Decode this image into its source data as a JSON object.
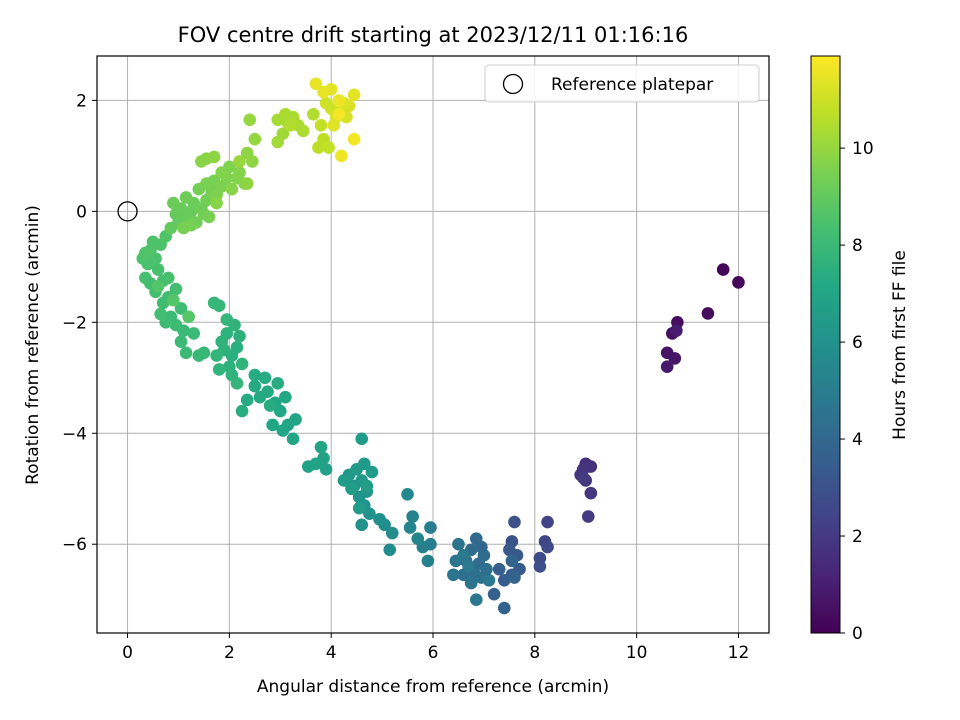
{
  "chart_data": {
    "type": "scatter",
    "title": "FOV centre drift starting at 2023/12/11 01:16:16",
    "xlabel": "Angular distance from reference (arcmin)",
    "ylabel": "Rotation from reference (arcmin)",
    "xlim": [
      -0.6,
      12.6
    ],
    "ylim": [
      -7.6,
      2.8
    ],
    "xticks": [
      0,
      2,
      4,
      6,
      8,
      10,
      12
    ],
    "yticks": [
      -6,
      -4,
      -2,
      0,
      2
    ],
    "grid": true,
    "legend": {
      "position": "top-right",
      "entries": [
        {
          "label": "Reference platepar",
          "marker": "open-circle"
        }
      ]
    },
    "reference_point": {
      "x": 0,
      "y": 0
    },
    "colorbar": {
      "label": "Hours from first FF file",
      "colormap": "viridis",
      "range": [
        0,
        11.9
      ],
      "ticks": [
        0,
        2,
        4,
        6,
        8,
        10
      ]
    },
    "points": [
      {
        "x": 11.7,
        "y": -1.05,
        "t": 0.1
      },
      {
        "x": 12.0,
        "y": -1.28,
        "t": 0.2
      },
      {
        "x": 11.4,
        "y": -1.84,
        "t": 0.3
      },
      {
        "x": 10.8,
        "y": -2.0,
        "t": 0.4
      },
      {
        "x": 10.7,
        "y": -2.2,
        "t": 0.5
      },
      {
        "x": 10.6,
        "y": -2.55,
        "t": 0.6
      },
      {
        "x": 10.75,
        "y": -2.65,
        "t": 0.7
      },
      {
        "x": 10.6,
        "y": -2.8,
        "t": 0.8
      },
      {
        "x": 10.78,
        "y": -2.15,
        "t": 0.9
      },
      {
        "x": 9.0,
        "y": -4.55,
        "t": 1.6
      },
      {
        "x": 9.1,
        "y": -4.6,
        "t": 1.7
      },
      {
        "x": 8.95,
        "y": -4.65,
        "t": 1.8
      },
      {
        "x": 8.9,
        "y": -4.75,
        "t": 1.8
      },
      {
        "x": 9.0,
        "y": -4.85,
        "t": 1.9
      },
      {
        "x": 9.1,
        "y": -5.08,
        "t": 1.9
      },
      {
        "x": 9.05,
        "y": -5.5,
        "t": 2.0
      },
      {
        "x": 8.95,
        "y": -4.8,
        "t": 2.0
      },
      {
        "x": 8.25,
        "y": -5.6,
        "t": 2.4
      },
      {
        "x": 8.2,
        "y": -5.95,
        "t": 2.5
      },
      {
        "x": 8.25,
        "y": -6.05,
        "t": 2.6
      },
      {
        "x": 8.1,
        "y": -6.25,
        "t": 2.7
      },
      {
        "x": 8.1,
        "y": -6.4,
        "t": 2.8
      },
      {
        "x": 7.6,
        "y": -5.6,
        "t": 3.0
      },
      {
        "x": 7.55,
        "y": -5.95,
        "t": 3.1
      },
      {
        "x": 7.5,
        "y": -6.1,
        "t": 3.2
      },
      {
        "x": 7.65,
        "y": -6.2,
        "t": 3.3
      },
      {
        "x": 7.7,
        "y": -6.45,
        "t": 3.4
      },
      {
        "x": 7.55,
        "y": -6.55,
        "t": 3.5
      },
      {
        "x": 7.4,
        "y": -6.65,
        "t": 3.5
      },
      {
        "x": 7.3,
        "y": -6.45,
        "t": 3.6
      },
      {
        "x": 7.2,
        "y": -6.9,
        "t": 3.7
      },
      {
        "x": 7.4,
        "y": -7.15,
        "t": 3.7
      },
      {
        "x": 7.55,
        "y": -6.3,
        "t": 3.8
      },
      {
        "x": 7.6,
        "y": -6.6,
        "t": 3.8
      },
      {
        "x": 6.85,
        "y": -5.9,
        "t": 4.0
      },
      {
        "x": 6.95,
        "y": -6.05,
        "t": 4.0
      },
      {
        "x": 6.75,
        "y": -6.1,
        "t": 4.1
      },
      {
        "x": 7.0,
        "y": -6.2,
        "t": 4.1
      },
      {
        "x": 6.65,
        "y": -6.3,
        "t": 4.2
      },
      {
        "x": 6.9,
        "y": -6.35,
        "t": 4.2
      },
      {
        "x": 7.05,
        "y": -6.45,
        "t": 4.3
      },
      {
        "x": 6.8,
        "y": -6.5,
        "t": 4.3
      },
      {
        "x": 6.6,
        "y": -6.55,
        "t": 4.4
      },
      {
        "x": 6.95,
        "y": -6.6,
        "t": 4.4
      },
      {
        "x": 6.75,
        "y": -6.7,
        "t": 4.5
      },
      {
        "x": 6.5,
        "y": -6.0,
        "t": 4.5
      },
      {
        "x": 6.45,
        "y": -6.3,
        "t": 4.6
      },
      {
        "x": 6.4,
        "y": -6.55,
        "t": 4.6
      },
      {
        "x": 6.85,
        "y": -7.0,
        "t": 4.7
      },
      {
        "x": 7.1,
        "y": -6.65,
        "t": 4.7
      },
      {
        "x": 6.6,
        "y": -6.2,
        "t": 4.8
      },
      {
        "x": 6.7,
        "y": -6.4,
        "t": 4.8
      },
      {
        "x": 5.95,
        "y": -5.7,
        "t": 5.0
      },
      {
        "x": 5.95,
        "y": -6.0,
        "t": 5.0
      },
      {
        "x": 5.8,
        "y": -6.05,
        "t": 5.1
      },
      {
        "x": 5.9,
        "y": -6.3,
        "t": 5.2
      },
      {
        "x": 5.6,
        "y": -5.5,
        "t": 5.3
      },
      {
        "x": 5.55,
        "y": -5.7,
        "t": 5.4
      },
      {
        "x": 5.7,
        "y": -5.9,
        "t": 5.4
      },
      {
        "x": 5.5,
        "y": -5.1,
        "t": 5.5
      },
      {
        "x": 5.2,
        "y": -5.8,
        "t": 5.7
      },
      {
        "x": 5.15,
        "y": -6.1,
        "t": 5.7
      },
      {
        "x": 5.05,
        "y": -5.65,
        "t": 5.8
      },
      {
        "x": 4.95,
        "y": -5.55,
        "t": 5.9
      },
      {
        "x": 4.75,
        "y": -5.45,
        "t": 6.0
      },
      {
        "x": 4.6,
        "y": -5.65,
        "t": 6.0
      },
      {
        "x": 4.65,
        "y": -5.3,
        "t": 6.1
      },
      {
        "x": 4.55,
        "y": -5.15,
        "t": 6.1
      },
      {
        "x": 4.7,
        "y": -5.05,
        "t": 6.2
      },
      {
        "x": 4.45,
        "y": -4.95,
        "t": 6.2
      },
      {
        "x": 4.6,
        "y": -4.85,
        "t": 6.3
      },
      {
        "x": 4.35,
        "y": -4.75,
        "t": 6.3
      },
      {
        "x": 4.5,
        "y": -4.65,
        "t": 6.4
      },
      {
        "x": 4.65,
        "y": -4.55,
        "t": 6.4
      },
      {
        "x": 4.8,
        "y": -4.7,
        "t": 6.4
      },
      {
        "x": 4.25,
        "y": -4.85,
        "t": 6.5
      },
      {
        "x": 4.55,
        "y": -5.35,
        "t": 6.5
      },
      {
        "x": 4.6,
        "y": -4.1,
        "t": 6.5
      },
      {
        "x": 4.7,
        "y": -4.95,
        "t": 6.6
      },
      {
        "x": 4.4,
        "y": -5.0,
        "t": 6.6
      },
      {
        "x": 3.85,
        "y": -4.45,
        "t": 6.8
      },
      {
        "x": 3.9,
        "y": -4.65,
        "t": 6.8
      },
      {
        "x": 3.7,
        "y": -4.55,
        "t": 6.9
      },
      {
        "x": 3.55,
        "y": -4.6,
        "t": 6.9
      },
      {
        "x": 3.8,
        "y": -4.25,
        "t": 6.95
      },
      {
        "x": 3.3,
        "y": -3.75,
        "t": 7.0
      },
      {
        "x": 3.15,
        "y": -3.85,
        "t": 7.0
      },
      {
        "x": 3.05,
        "y": -3.95,
        "t": 7.05
      },
      {
        "x": 3.25,
        "y": -4.1,
        "t": 7.05
      },
      {
        "x": 3.0,
        "y": -3.6,
        "t": 7.1
      },
      {
        "x": 2.85,
        "y": -3.85,
        "t": 7.1
      },
      {
        "x": 2.9,
        "y": -3.45,
        "t": 7.15
      },
      {
        "x": 3.1,
        "y": -3.35,
        "t": 7.15
      },
      {
        "x": 2.75,
        "y": -3.25,
        "t": 7.2
      },
      {
        "x": 2.6,
        "y": -3.35,
        "t": 7.2
      },
      {
        "x": 2.5,
        "y": -3.15,
        "t": 7.25
      },
      {
        "x": 2.35,
        "y": -3.4,
        "t": 7.25
      },
      {
        "x": 2.7,
        "y": -3.0,
        "t": 7.3
      },
      {
        "x": 2.5,
        "y": -2.95,
        "t": 7.3
      },
      {
        "x": 2.25,
        "y": -3.6,
        "t": 7.35
      },
      {
        "x": 2.8,
        "y": -3.5,
        "t": 7.35
      },
      {
        "x": 2.95,
        "y": -3.1,
        "t": 7.4
      },
      {
        "x": 2.15,
        "y": -2.45,
        "t": 7.5
      },
      {
        "x": 2.05,
        "y": -2.6,
        "t": 7.5
      },
      {
        "x": 2.0,
        "y": -2.8,
        "t": 7.55
      },
      {
        "x": 2.2,
        "y": -2.25,
        "t": 7.55
      },
      {
        "x": 1.9,
        "y": -2.5,
        "t": 7.6
      },
      {
        "x": 1.95,
        "y": -2.2,
        "t": 7.6
      },
      {
        "x": 2.1,
        "y": -2.05,
        "t": 7.65
      },
      {
        "x": 1.85,
        "y": -2.35,
        "t": 7.65
      },
      {
        "x": 2.05,
        "y": -2.95,
        "t": 7.7
      },
      {
        "x": 2.25,
        "y": -2.75,
        "t": 7.7
      },
      {
        "x": 1.75,
        "y": -2.6,
        "t": 7.75
      },
      {
        "x": 1.8,
        "y": -2.85,
        "t": 7.75
      },
      {
        "x": 2.15,
        "y": -3.1,
        "t": 7.8
      },
      {
        "x": 1.95,
        "y": -1.95,
        "t": 7.8
      },
      {
        "x": 1.7,
        "y": -1.65,
        "t": 7.85
      },
      {
        "x": 1.8,
        "y": -1.7,
        "t": 7.85
      },
      {
        "x": 1.5,
        "y": -2.55,
        "t": 7.9
      },
      {
        "x": 1.4,
        "y": -2.6,
        "t": 7.9
      },
      {
        "x": 1.3,
        "y": -2.2,
        "t": 8.0
      },
      {
        "x": 1.1,
        "y": -2.15,
        "t": 8.0
      },
      {
        "x": 1.15,
        "y": -2.55,
        "t": 8.05
      },
      {
        "x": 1.05,
        "y": -2.35,
        "t": 8.05
      },
      {
        "x": 0.95,
        "y": -2.05,
        "t": 8.1
      },
      {
        "x": 0.85,
        "y": -1.9,
        "t": 8.1
      },
      {
        "x": 1.05,
        "y": -1.75,
        "t": 8.15
      },
      {
        "x": 0.75,
        "y": -2.0,
        "t": 8.15
      },
      {
        "x": 0.7,
        "y": -1.65,
        "t": 8.2
      },
      {
        "x": 0.8,
        "y": -1.55,
        "t": 8.2
      },
      {
        "x": 0.65,
        "y": -1.85,
        "t": 8.25
      },
      {
        "x": 0.95,
        "y": -1.4,
        "t": 8.25
      },
      {
        "x": 0.55,
        "y": -1.45,
        "t": 8.3
      },
      {
        "x": 0.45,
        "y": -1.3,
        "t": 8.3
      },
      {
        "x": 0.7,
        "y": -1.25,
        "t": 8.35
      },
      {
        "x": 0.35,
        "y": -1.2,
        "t": 8.35
      },
      {
        "x": 0.6,
        "y": -1.05,
        "t": 8.4
      },
      {
        "x": 0.8,
        "y": -1.2,
        "t": 8.4
      },
      {
        "x": 0.4,
        "y": -0.95,
        "t": 8.45
      },
      {
        "x": 0.55,
        "y": -0.85,
        "t": 8.45
      },
      {
        "x": 0.3,
        "y": -0.85,
        "t": 8.5
      },
      {
        "x": 0.45,
        "y": -0.7,
        "t": 8.5
      },
      {
        "x": 0.65,
        "y": -0.6,
        "t": 8.55
      },
      {
        "x": 0.5,
        "y": -0.55,
        "t": 8.55
      },
      {
        "x": 0.75,
        "y": -0.45,
        "t": 8.6
      },
      {
        "x": 0.35,
        "y": -0.75,
        "t": 8.6
      },
      {
        "x": 0.9,
        "y": -1.6,
        "t": 8.65
      },
      {
        "x": 0.6,
        "y": -1.35,
        "t": 8.65
      },
      {
        "x": 1.2,
        "y": -1.9,
        "t": 8.7
      },
      {
        "x": 0.85,
        "y": -0.3,
        "t": 9.0
      },
      {
        "x": 1.0,
        "y": -0.2,
        "t": 9.0
      },
      {
        "x": 0.95,
        "y": -0.05,
        "t": 9.1
      },
      {
        "x": 1.15,
        "y": -0.1,
        "t": 9.1
      },
      {
        "x": 1.05,
        "y": 0.05,
        "t": 9.15
      },
      {
        "x": 1.25,
        "y": 0.0,
        "t": 9.15
      },
      {
        "x": 0.9,
        "y": 0.15,
        "t": 9.2
      },
      {
        "x": 1.3,
        "y": 0.15,
        "t": 9.2
      },
      {
        "x": 1.15,
        "y": 0.25,
        "t": 9.25
      },
      {
        "x": 1.45,
        "y": 0.05,
        "t": 9.25
      },
      {
        "x": 1.35,
        "y": -0.2,
        "t": 9.3
      },
      {
        "x": 1.5,
        "y": -0.05,
        "t": 9.3
      },
      {
        "x": 1.55,
        "y": 0.2,
        "t": 9.35
      },
      {
        "x": 1.4,
        "y": 0.4,
        "t": 9.35
      },
      {
        "x": 1.65,
        "y": 0.35,
        "t": 9.4
      },
      {
        "x": 1.25,
        "y": -0.25,
        "t": 9.4
      },
      {
        "x": 1.6,
        "y": -0.1,
        "t": 9.45
      },
      {
        "x": 1.1,
        "y": -0.3,
        "t": 9.45
      },
      {
        "x": 1.7,
        "y": 0.55,
        "t": 9.5
      },
      {
        "x": 1.55,
        "y": 0.5,
        "t": 9.5
      },
      {
        "x": 1.85,
        "y": 0.45,
        "t": 9.55
      },
      {
        "x": 1.75,
        "y": 0.3,
        "t": 9.55
      },
      {
        "x": 1.95,
        "y": 0.6,
        "t": 9.6
      },
      {
        "x": 2.0,
        "y": 0.8,
        "t": 9.6
      },
      {
        "x": 1.85,
        "y": 0.7,
        "t": 9.65
      },
      {
        "x": 2.15,
        "y": 0.6,
        "t": 9.65
      },
      {
        "x": 2.3,
        "y": 0.5,
        "t": 9.7
      },
      {
        "x": 2.2,
        "y": 0.7,
        "t": 9.7
      },
      {
        "x": 2.05,
        "y": 0.4,
        "t": 9.75
      },
      {
        "x": 1.75,
        "y": 0.15,
        "t": 9.75
      },
      {
        "x": 1.45,
        "y": 0.9,
        "t": 9.8
      },
      {
        "x": 1.55,
        "y": 0.95,
        "t": 9.8
      },
      {
        "x": 1.7,
        "y": 0.98,
        "t": 9.85
      },
      {
        "x": 2.35,
        "y": 1.05,
        "t": 9.85
      },
      {
        "x": 2.45,
        "y": 0.9,
        "t": 9.9
      },
      {
        "x": 2.35,
        "y": 0.5,
        "t": 9.9
      },
      {
        "x": 2.5,
        "y": 1.3,
        "t": 10.0
      },
      {
        "x": 2.4,
        "y": 1.65,
        "t": 10.0
      },
      {
        "x": 2.2,
        "y": 0.9,
        "t": 10.05
      },
      {
        "x": 2.95,
        "y": 1.25,
        "t": 10.2
      },
      {
        "x": 3.05,
        "y": 1.4,
        "t": 10.2
      },
      {
        "x": 2.95,
        "y": 1.65,
        "t": 10.3
      },
      {
        "x": 3.15,
        "y": 1.6,
        "t": 10.3
      },
      {
        "x": 3.25,
        "y": 1.7,
        "t": 10.35
      },
      {
        "x": 3.1,
        "y": 1.75,
        "t": 10.35
      },
      {
        "x": 3.35,
        "y": 1.55,
        "t": 10.4
      },
      {
        "x": 3.45,
        "y": 1.45,
        "t": 10.4
      },
      {
        "x": 3.65,
        "y": 1.75,
        "t": 10.5
      },
      {
        "x": 3.2,
        "y": 1.55,
        "t": 10.5
      },
      {
        "x": 3.75,
        "y": 1.15,
        "t": 10.7
      },
      {
        "x": 3.85,
        "y": 1.3,
        "t": 10.7
      },
      {
        "x": 3.95,
        "y": 1.15,
        "t": 10.8
      },
      {
        "x": 3.8,
        "y": 1.55,
        "t": 10.8
      },
      {
        "x": 3.9,
        "y": 1.95,
        "t": 11.0
      },
      {
        "x": 4.0,
        "y": 1.85,
        "t": 11.0
      },
      {
        "x": 4.1,
        "y": 1.7,
        "t": 11.1
      },
      {
        "x": 4.2,
        "y": 1.85,
        "t": 11.1
      },
      {
        "x": 4.3,
        "y": 1.7,
        "t": 11.2
      },
      {
        "x": 4.35,
        "y": 1.9,
        "t": 11.2
      },
      {
        "x": 4.25,
        "y": 1.95,
        "t": 11.3
      },
      {
        "x": 4.05,
        "y": 1.55,
        "t": 11.3
      },
      {
        "x": 4.45,
        "y": 2.1,
        "t": 11.4
      },
      {
        "x": 4.0,
        "y": 2.2,
        "t": 11.4
      },
      {
        "x": 3.7,
        "y": 2.3,
        "t": 11.5
      },
      {
        "x": 3.85,
        "y": 2.15,
        "t": 11.5
      },
      {
        "x": 4.15,
        "y": 2.0,
        "t": 11.6
      },
      {
        "x": 4.2,
        "y": 1.0,
        "t": 11.6
      },
      {
        "x": 4.45,
        "y": 1.3,
        "t": 11.7
      },
      {
        "x": 4.15,
        "y": 1.75,
        "t": 11.7
      }
    ]
  }
}
